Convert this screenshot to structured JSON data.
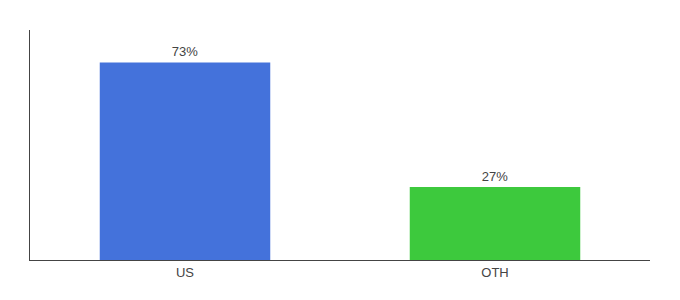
{
  "chart_data": {
    "type": "bar",
    "categories": [
      "US",
      "OTH"
    ],
    "values": [
      73,
      27
    ],
    "value_labels": [
      "73%",
      "27%"
    ],
    "colors": [
      "#4472db",
      "#3dc93d"
    ],
    "ylim": [
      0,
      85
    ],
    "grid": false,
    "tick_labels": "x",
    "data_labels": true
  }
}
